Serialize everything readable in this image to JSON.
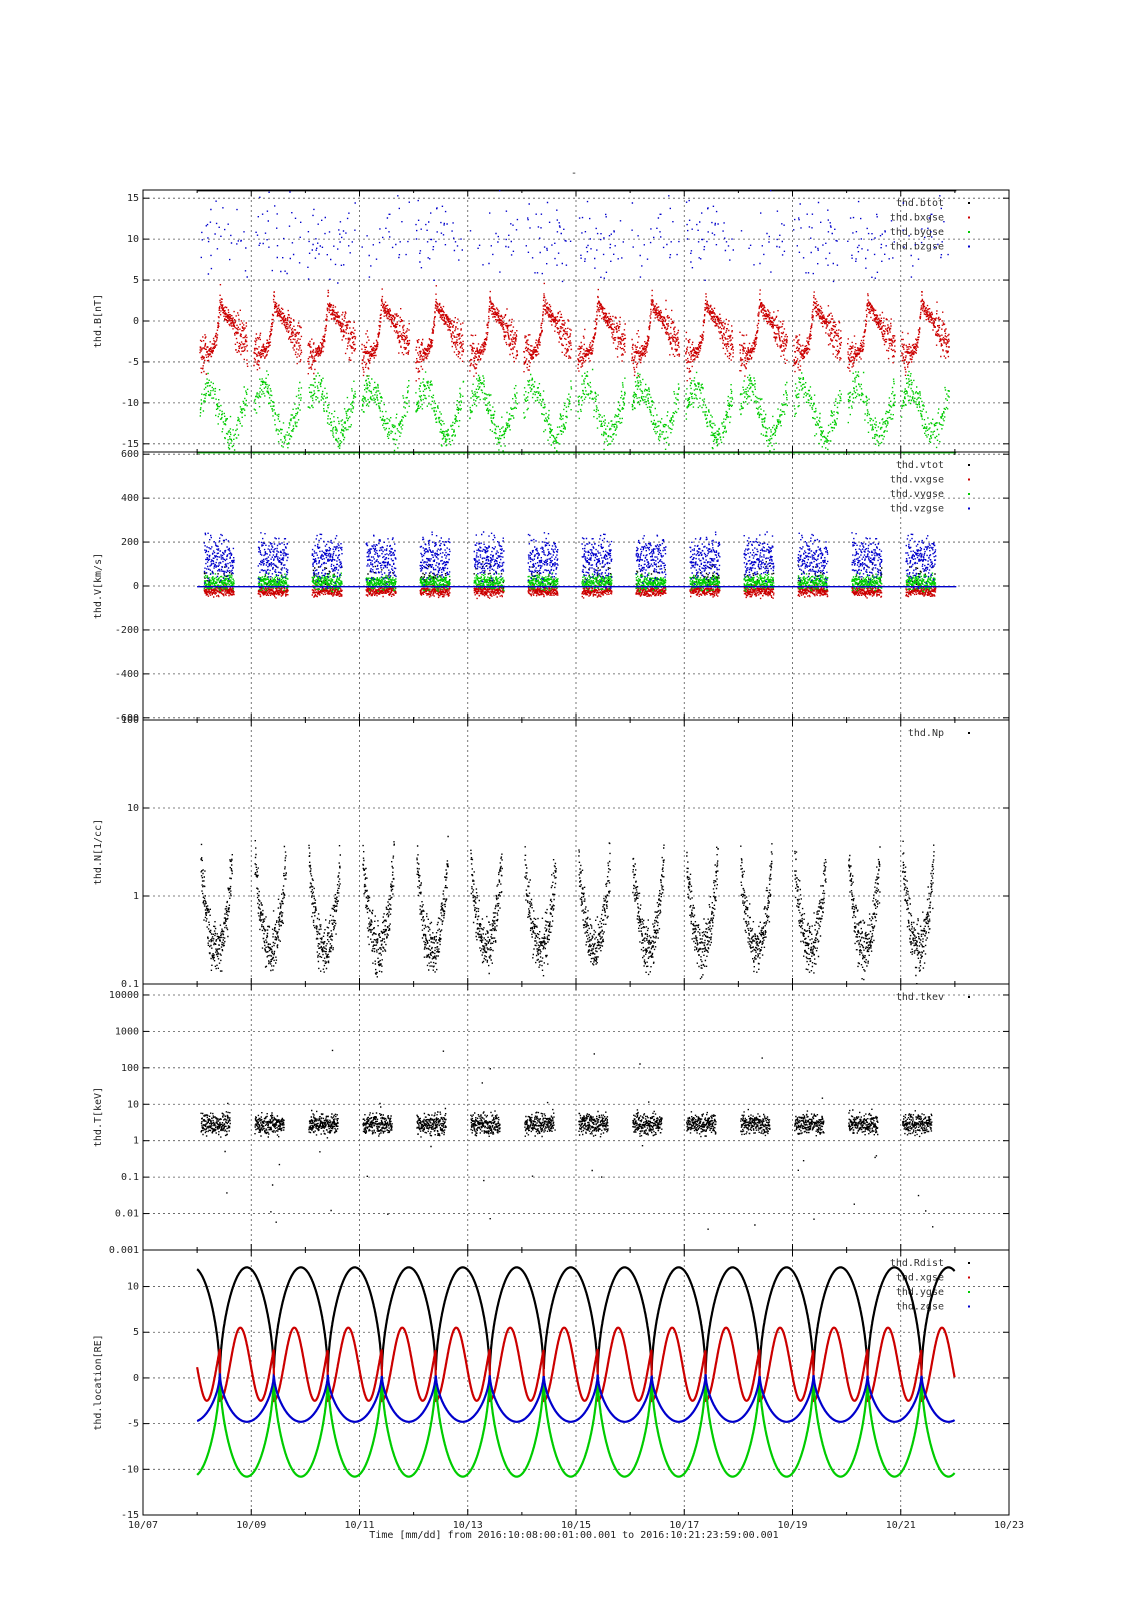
{
  "figure": {
    "title": "-",
    "xlabel": "Time [mm/dd]  from 2016:10:08:00:01:00.001  to  2016:10:21:23:59:00.001",
    "x_tick_labels": [
      "10/07",
      "10/09",
      "10/11",
      "10/13",
      "10/15",
      "10/17",
      "10/19",
      "10/21",
      "10/23"
    ]
  },
  "chart_data": [
    {
      "type": "scatter",
      "ylabel": "thd.B[nT]",
      "ylim": [
        -16,
        16
      ],
      "yscale": "linear",
      "y_ticks": [
        -15,
        -10,
        -5,
        0,
        5,
        10,
        15
      ],
      "y_tick_labels": [
        "-15",
        "-10",
        "-5",
        "0",
        "5",
        "10",
        "15"
      ],
      "xlim_days": [
        "2016-10-07",
        "2016-10-23"
      ],
      "grid": true,
      "legend_position": "top-right",
      "series": [
        {
          "name": "thd.btot",
          "color": "#000000"
        },
        {
          "name": "thd.bxgse",
          "color": "#cc0000"
        },
        {
          "name": "thd.bygse",
          "color": "#00cc00"
        },
        {
          "name": "thd.bzgse",
          "color": "#0000cc"
        }
      ]
    },
    {
      "type": "scatter",
      "ylabel": "thd.V[km/s]",
      "ylim": [
        -610,
        610
      ],
      "yscale": "linear",
      "y_ticks": [
        -600,
        -400,
        -200,
        0,
        200,
        400,
        600
      ],
      "y_tick_labels": [
        "-600",
        "-400",
        "-200",
        "0",
        "200",
        "400",
        "600"
      ],
      "grid": true,
      "legend_position": "top-right",
      "series": [
        {
          "name": "thd.vtot",
          "color": "#000000"
        },
        {
          "name": "thd.vxgse",
          "color": "#cc0000"
        },
        {
          "name": "thd.vygse",
          "color": "#00cc00"
        },
        {
          "name": "thd.vzgse",
          "color": "#0000cc"
        }
      ]
    },
    {
      "type": "scatter",
      "ylabel": "thd.N[1/cc]",
      "ylim": [
        0.1,
        100
      ],
      "yscale": "log",
      "y_ticks": [
        0.1,
        1,
        10,
        100
      ],
      "y_tick_labels": [
        "0.1",
        "1",
        "10",
        "100"
      ],
      "grid": true,
      "legend_position": "top-right",
      "series": [
        {
          "name": "thd.Np",
          "color": "#000000"
        }
      ]
    },
    {
      "type": "scatter",
      "ylabel": "thd.T[keV]",
      "ylim": [
        0.001,
        20000
      ],
      "yscale": "log",
      "y_ticks": [
        0.001,
        0.01,
        0.1,
        1,
        10,
        100,
        1000,
        10000
      ],
      "y_tick_labels": [
        "0.001",
        "0.01",
        "0.1",
        "1",
        "10",
        "100",
        "1000",
        "10000"
      ],
      "grid": true,
      "legend_position": "top-right",
      "series": [
        {
          "name": "thd.tkev",
          "color": "#000000"
        }
      ]
    },
    {
      "type": "line",
      "ylabel": "thd.location[RE]",
      "ylim": [
        -15,
        14
      ],
      "yscale": "linear",
      "y_ticks": [
        -15,
        -10,
        -5,
        0,
        5,
        10
      ],
      "y_tick_labels": [
        "-15",
        "-10",
        "-5",
        "0",
        "5",
        "10"
      ],
      "grid": true,
      "legend_position": "top-right",
      "orbit_period_days": 0.9972,
      "series": [
        {
          "name": "thd.Rdist",
          "color": "#000000",
          "min": 0.3,
          "max": 12.1
        },
        {
          "name": "thd.xgse",
          "color": "#cc0000",
          "min": -2.5,
          "max": 5.5
        },
        {
          "name": "thd.ygse",
          "color": "#00cc00",
          "min": -10.8,
          "max": 0.5
        },
        {
          "name": "thd.zgse",
          "color": "#0000cc",
          "min": -4.8,
          "max": 0.5
        }
      ]
    }
  ]
}
